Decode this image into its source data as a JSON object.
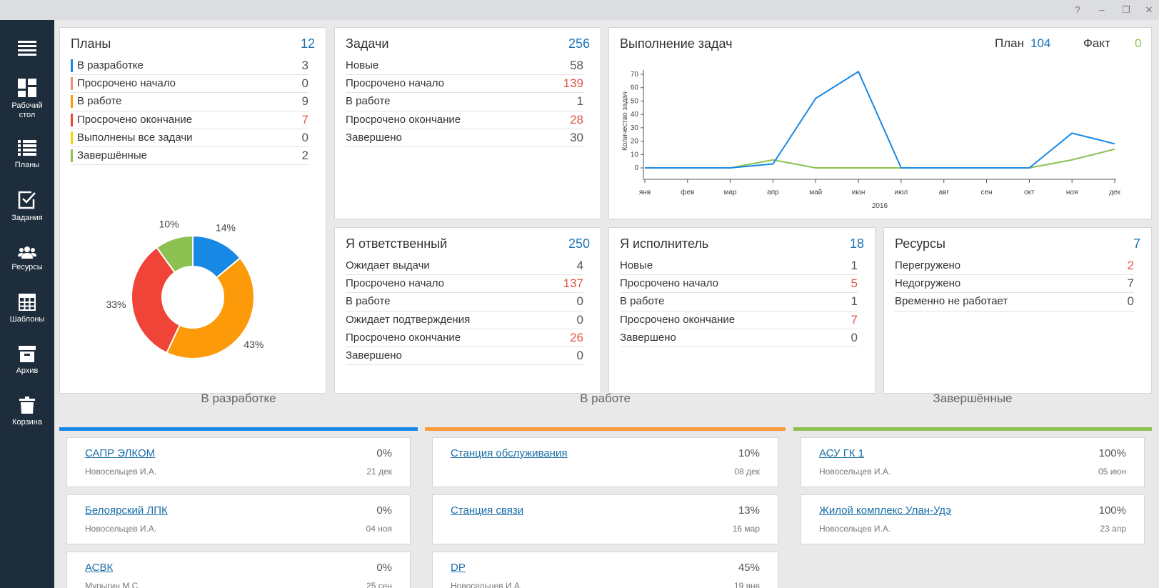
{
  "window": {
    "help_label": "?",
    "minimize_label": "–",
    "restore_label": "❐",
    "close_label": "✕"
  },
  "sidebar": {
    "items": [
      {
        "label": "",
        "icon": "menu-icon"
      },
      {
        "label": "Рабочий",
        "label2": "стол",
        "icon": "dashboard-icon"
      },
      {
        "label": "Планы",
        "icon": "list-icon"
      },
      {
        "label": "Задания",
        "icon": "checkbox-icon"
      },
      {
        "label": "Ресурсы",
        "icon": "people-icon"
      },
      {
        "label": "Шаблоны",
        "icon": "table-icon"
      },
      {
        "label": "Архив",
        "icon": "archive-icon"
      },
      {
        "label": "Корзина",
        "icon": "trash-icon"
      }
    ]
  },
  "colors": {
    "accent": "#1a74b6",
    "red": "#e05548",
    "blue": "#1789e5",
    "orange": "#fd9a0a",
    "green": "#8cc152"
  },
  "plans": {
    "title": "Планы",
    "count": "12",
    "rows": [
      {
        "label": "В разработке",
        "value": "3",
        "color": "#1789e5",
        "red": false
      },
      {
        "label": "Просрочено начало",
        "value": "0",
        "color": "#f08a7e",
        "red": false
      },
      {
        "label": "В работе",
        "value": "9",
        "color": "#fd9a0a",
        "red": false
      },
      {
        "label": "Просрочено окончание",
        "value": "7",
        "color": "#f04438",
        "red": true
      },
      {
        "label": "Выполнены все задачи",
        "value": "0",
        "color": "#f5d10a",
        "red": false
      },
      {
        "label": "Завершённые",
        "value": "2",
        "color": "#8cc152",
        "red": false
      }
    ]
  },
  "tasks": {
    "title": "Задачи",
    "count": "256",
    "rows": [
      {
        "label": "Новые",
        "value": "58",
        "red": false
      },
      {
        "label": "Просрочено начало",
        "value": "139",
        "red": true
      },
      {
        "label": "В работе",
        "value": "1",
        "red": false
      },
      {
        "label": "Просрочено окончание",
        "value": "28",
        "red": true
      },
      {
        "label": "Завершено",
        "value": "30",
        "red": false
      }
    ]
  },
  "responsible": {
    "title": "Я ответственный",
    "count": "250",
    "rows": [
      {
        "label": "Ожидает выдачи",
        "value": "4",
        "red": false
      },
      {
        "label": "Просрочено начало",
        "value": "137",
        "red": true
      },
      {
        "label": "В работе",
        "value": "0",
        "red": false
      },
      {
        "label": "Ожидает подтверждения",
        "value": "0",
        "red": false
      },
      {
        "label": "Просрочено окончание",
        "value": "26",
        "red": true
      },
      {
        "label": "Завершено",
        "value": "0",
        "red": false
      }
    ]
  },
  "executor": {
    "title": "Я исполнитель",
    "count": "18",
    "rows": [
      {
        "label": "Новые",
        "value": "1",
        "red": false
      },
      {
        "label": "Просрочено начало",
        "value": "5",
        "red": true
      },
      {
        "label": "В работе",
        "value": "1",
        "red": false
      },
      {
        "label": "Просрочено окончание",
        "value": "7",
        "red": true
      },
      {
        "label": "Завершено",
        "value": "0",
        "red": false
      }
    ]
  },
  "resources": {
    "title": "Ресурсы",
    "count": "7",
    "rows": [
      {
        "label": "Перегружено",
        "value": "2",
        "red": true
      },
      {
        "label": "Недогружено",
        "value": "7",
        "red": false
      },
      {
        "label": "Временно не работает",
        "value": "0",
        "red": false
      }
    ]
  },
  "completion": {
    "title": "Выполнение задач",
    "plan_label": "План",
    "plan_value": "104",
    "fact_label": "Факт",
    "fact_value": "0"
  },
  "chart_data": [
    {
      "type": "pie",
      "categories": [
        "В разработке",
        "В работе",
        "Просрочено окончание",
        "Завершённые"
      ],
      "values": [
        14,
        43,
        33,
        10
      ],
      "labels": [
        "14%",
        "43%",
        "33%",
        "10%"
      ],
      "colors": [
        "#1789e5",
        "#fd9a0a",
        "#f04438",
        "#8cc152"
      ],
      "donut": true
    },
    {
      "type": "line",
      "x": [
        "янв",
        "фев",
        "мар",
        "апр",
        "май",
        "июн",
        "июл",
        "авг",
        "сен",
        "окт",
        "ноя",
        "дек"
      ],
      "series": [
        {
          "name": "План",
          "values": [
            0,
            0,
            0,
            3,
            52,
            72,
            0,
            0,
            0,
            0,
            26,
            18
          ],
          "color": "#1789e5"
        },
        {
          "name": "Факт",
          "values": [
            0,
            0,
            0,
            6,
            0,
            0,
            0,
            0,
            0,
            0,
            6,
            14
          ],
          "color": "#8cc152"
        }
      ],
      "ylabel": "Количество задач",
      "xlabel": "2016",
      "ylim": [
        0,
        70
      ],
      "yticks": [
        0,
        10,
        20,
        30,
        40,
        50,
        60,
        70
      ],
      "grid": false
    }
  ],
  "columns": [
    {
      "title": "В разработке",
      "color": "#1789e5",
      "projects": [
        {
          "name": "САПР ЭЛКОМ",
          "percent": "0%",
          "owner": "Новосельцев И.А.",
          "date": "21 дек"
        },
        {
          "name": "Белоярский ЛПК",
          "percent": "0%",
          "owner": "Новосельцев И.А.",
          "date": "04 ноя"
        },
        {
          "name": "АСВК",
          "percent": "0%",
          "owner": "Мурыгин М.С.",
          "date": "25 сен"
        }
      ]
    },
    {
      "title": "В работе",
      "color": "#fd9a3a",
      "projects": [
        {
          "name": "Станция обслуживания",
          "percent": "10%",
          "owner": "",
          "date": "08 дек"
        },
        {
          "name": "Станция связи",
          "percent": "13%",
          "owner": "",
          "date": "16 мар"
        },
        {
          "name": "DP",
          "percent": "45%",
          "owner": "Новосельцев И.А.",
          "date": "19 янв"
        }
      ]
    },
    {
      "title": "Завершённые",
      "color": "#8cc152",
      "projects": [
        {
          "name": "АСУ ГК 1",
          "percent": "100%",
          "owner": "Новосельцев И.А.",
          "date": "05 июн"
        },
        {
          "name": "Жилой комплекс Улан-Удэ",
          "percent": "100%",
          "owner": "Новосельцев И.А.",
          "date": "23 апр"
        }
      ]
    }
  ]
}
